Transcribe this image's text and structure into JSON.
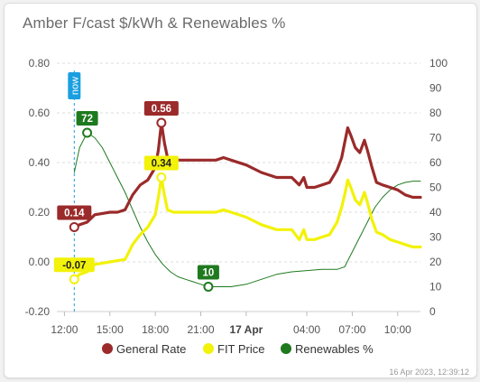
{
  "card": {
    "title": "Amber F/cast $/kWh & Renewables %",
    "footer": "16 Apr 2023, 12:39:12"
  },
  "chart_data": {
    "type": "line",
    "title": "Amber F/cast $/kWh & Renewables %",
    "x_ticks": [
      "12:00",
      "15:00",
      "18:00",
      "21:00",
      "17 Apr",
      "04:00",
      "07:00",
      "10:00"
    ],
    "x_tick_hours": [
      12,
      15,
      18,
      21,
      24,
      28,
      31,
      34
    ],
    "x_range": [
      11.5,
      35.5
    ],
    "y_left": {
      "range": [
        -0.2,
        0.8
      ],
      "ticks": [
        "0.80",
        "0.60",
        "0.40",
        "0.20",
        "0.00",
        "-0.20"
      ],
      "tick_values": [
        0.8,
        0.6,
        0.4,
        0.2,
        0.0,
        -0.2
      ]
    },
    "y_right": {
      "range": [
        0,
        100
      ],
      "ticks": [
        "100",
        "90",
        "80",
        "70",
        "60",
        "50",
        "40",
        "30",
        "20",
        "10",
        "0"
      ],
      "tick_values": [
        100,
        90,
        80,
        70,
        60,
        50,
        40,
        30,
        20,
        10,
        0
      ]
    },
    "grid": "horizontal dashed",
    "legend_position": "bottom",
    "now_marker": {
      "label": "now",
      "hour": 12.65,
      "color": "#1a9fe0"
    },
    "series": [
      {
        "name": "General Rate",
        "axis": "left",
        "color": "#9b2a2a",
        "points": [
          [
            12.65,
            0.14
          ],
          [
            13.0,
            0.15
          ],
          [
            13.5,
            0.16
          ],
          [
            14.0,
            0.19
          ],
          [
            14.5,
            0.195
          ],
          [
            15.0,
            0.2
          ],
          [
            15.5,
            0.2
          ],
          [
            16.0,
            0.21
          ],
          [
            16.5,
            0.27
          ],
          [
            17.0,
            0.31
          ],
          [
            17.5,
            0.33
          ],
          [
            17.8,
            0.36
          ],
          [
            18.0,
            0.38
          ],
          [
            18.2,
            0.45
          ],
          [
            18.4,
            0.56
          ],
          [
            18.6,
            0.48
          ],
          [
            18.8,
            0.42
          ],
          [
            19.2,
            0.41
          ],
          [
            20.0,
            0.41
          ],
          [
            21.0,
            0.41
          ],
          [
            22.0,
            0.41
          ],
          [
            22.5,
            0.42
          ],
          [
            23.0,
            0.41
          ],
          [
            24.0,
            0.39
          ],
          [
            25.0,
            0.36
          ],
          [
            26.0,
            0.34
          ],
          [
            27.0,
            0.34
          ],
          [
            27.5,
            0.31
          ],
          [
            27.8,
            0.34
          ],
          [
            28.0,
            0.3
          ],
          [
            28.5,
            0.3
          ],
          [
            29.0,
            0.31
          ],
          [
            29.5,
            0.32
          ],
          [
            30.0,
            0.37
          ],
          [
            30.3,
            0.42
          ],
          [
            30.5,
            0.48
          ],
          [
            30.7,
            0.54
          ],
          [
            30.9,
            0.51
          ],
          [
            31.2,
            0.46
          ],
          [
            31.5,
            0.44
          ],
          [
            31.8,
            0.49
          ],
          [
            32.0,
            0.45
          ],
          [
            32.3,
            0.38
          ],
          [
            32.6,
            0.32
          ],
          [
            33.0,
            0.31
          ],
          [
            33.5,
            0.3
          ],
          [
            34.0,
            0.29
          ],
          [
            34.5,
            0.27
          ],
          [
            35.0,
            0.26
          ],
          [
            35.5,
            0.26
          ]
        ]
      },
      {
        "name": "FIT Price",
        "axis": "left",
        "color": "#f2f20a",
        "points": [
          [
            12.65,
            -0.07
          ],
          [
            13.0,
            -0.05
          ],
          [
            13.5,
            -0.04
          ],
          [
            14.0,
            -0.01
          ],
          [
            14.5,
            -0.005
          ],
          [
            15.0,
            0.0
          ],
          [
            15.5,
            0.005
          ],
          [
            16.0,
            0.01
          ],
          [
            16.5,
            0.07
          ],
          [
            17.0,
            0.11
          ],
          [
            17.5,
            0.14
          ],
          [
            17.8,
            0.17
          ],
          [
            18.0,
            0.19
          ],
          [
            18.2,
            0.26
          ],
          [
            18.4,
            0.34
          ],
          [
            18.6,
            0.27
          ],
          [
            18.8,
            0.21
          ],
          [
            19.2,
            0.2
          ],
          [
            20.0,
            0.2
          ],
          [
            21.0,
            0.2
          ],
          [
            22.0,
            0.2
          ],
          [
            22.5,
            0.21
          ],
          [
            23.0,
            0.2
          ],
          [
            24.0,
            0.18
          ],
          [
            25.0,
            0.15
          ],
          [
            26.0,
            0.13
          ],
          [
            27.0,
            0.13
          ],
          [
            27.5,
            0.09
          ],
          [
            27.8,
            0.13
          ],
          [
            28.0,
            0.09
          ],
          [
            28.5,
            0.09
          ],
          [
            29.0,
            0.1
          ],
          [
            29.5,
            0.11
          ],
          [
            30.0,
            0.16
          ],
          [
            30.3,
            0.22
          ],
          [
            30.5,
            0.27
          ],
          [
            30.7,
            0.33
          ],
          [
            30.9,
            0.3
          ],
          [
            31.2,
            0.25
          ],
          [
            31.5,
            0.23
          ],
          [
            31.8,
            0.28
          ],
          [
            32.0,
            0.24
          ],
          [
            32.3,
            0.17
          ],
          [
            32.6,
            0.12
          ],
          [
            33.0,
            0.11
          ],
          [
            33.5,
            0.09
          ],
          [
            34.0,
            0.08
          ],
          [
            34.5,
            0.07
          ],
          [
            35.0,
            0.06
          ],
          [
            35.5,
            0.06
          ]
        ]
      },
      {
        "name": "Renewables %",
        "axis": "right",
        "color": "#1f7a1f",
        "points": [
          [
            12.65,
            56
          ],
          [
            13.0,
            66
          ],
          [
            13.5,
            72
          ],
          [
            14.0,
            70
          ],
          [
            14.5,
            66
          ],
          [
            15.0,
            60
          ],
          [
            15.5,
            54
          ],
          [
            16.0,
            48
          ],
          [
            16.5,
            41
          ],
          [
            17.0,
            34
          ],
          [
            17.5,
            28
          ],
          [
            18.0,
            23
          ],
          [
            18.5,
            19
          ],
          [
            19.0,
            16
          ],
          [
            19.5,
            14
          ],
          [
            20.0,
            13
          ],
          [
            20.5,
            12
          ],
          [
            21.0,
            11
          ],
          [
            21.5,
            10
          ],
          [
            22.0,
            10
          ],
          [
            23.0,
            10
          ],
          [
            24.0,
            11
          ],
          [
            25.0,
            13
          ],
          [
            26.0,
            15
          ],
          [
            27.0,
            16
          ],
          [
            28.0,
            16.5
          ],
          [
            29.0,
            17
          ],
          [
            30.0,
            17
          ],
          [
            30.5,
            18
          ],
          [
            31.0,
            24
          ],
          [
            31.5,
            30
          ],
          [
            32.0,
            36
          ],
          [
            32.5,
            42
          ],
          [
            33.0,
            46
          ],
          [
            33.5,
            49
          ],
          [
            34.0,
            51
          ],
          [
            34.5,
            52
          ],
          [
            35.0,
            52.5
          ],
          [
            35.5,
            52.5
          ]
        ]
      }
    ],
    "annotations": [
      {
        "series": "General Rate",
        "hour": 12.65,
        "value": 0.14,
        "text": "0.14"
      },
      {
        "series": "General Rate",
        "hour": 18.4,
        "value": 0.56,
        "text": "0.56"
      },
      {
        "series": "FIT Price",
        "hour": 12.65,
        "value": -0.07,
        "text": "-0.07"
      },
      {
        "series": "FIT Price",
        "hour": 18.4,
        "value": 0.34,
        "text": "0.34"
      },
      {
        "series": "Renewables %",
        "hour": 13.5,
        "value": 72,
        "text": "72"
      },
      {
        "series": "Renewables %",
        "hour": 21.5,
        "value": 10,
        "text": "10"
      }
    ]
  }
}
